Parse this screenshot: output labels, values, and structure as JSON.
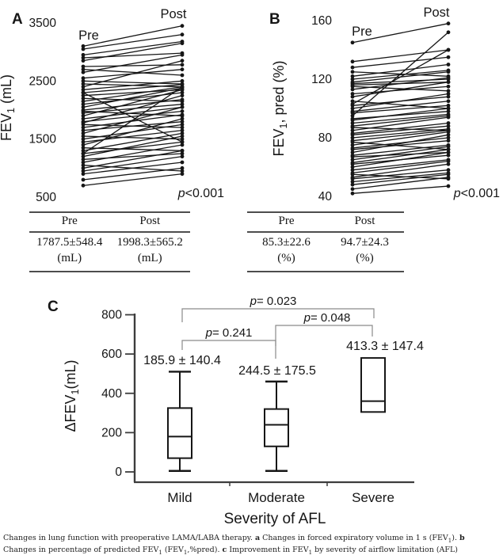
{
  "colors": {
    "ink": "#161616",
    "axis": "#3d3d3d",
    "bracket": "#8a8a8a",
    "table_rule": "#4d4d4d"
  },
  "tables": {
    "a": {
      "headers": [
        "Pre",
        "Post"
      ],
      "values": [
        "1787.5±548.4",
        "1998.3±565.2"
      ],
      "units": [
        "(mL)",
        "(mL)"
      ]
    },
    "b": {
      "headers": [
        "Pre",
        "Post"
      ],
      "values": [
        "85.3±22.6",
        "94.7±24.3"
      ],
      "units": [
        "(%)",
        "(%)"
      ]
    }
  },
  "figure": {
    "caption_segments": [
      {
        "t": "Changes in lung function with preoperative LAMA/LABA therapy. "
      },
      {
        "t": "a",
        "b": true
      },
      {
        "t": " Changes in forced expiratory volume in 1 s (FEV"
      },
      {
        "t": "1",
        "sub": true
      },
      {
        "t": "). "
      },
      {
        "t": "b",
        "b": true
      },
      {
        "t": " Changes in percentage of predicted FEV"
      },
      {
        "t": "1",
        "sub": true
      },
      {
        "t": " (FEV"
      },
      {
        "t": "1",
        "sub": true
      },
      {
        "t": ",%pred). "
      },
      {
        "t": "c",
        "b": true
      },
      {
        "t": " Improvement in FEV"
      },
      {
        "t": "1",
        "sub": true
      },
      {
        "t": " by severity of airflow limitation (AFL)"
      }
    ]
  },
  "chart_data": [
    {
      "id": "a",
      "type": "line",
      "subtype": "paired-lines",
      "panel_label": "A",
      "ylabel_segments": [
        {
          "t": "FEV"
        },
        {
          "t": "1",
          "sub": true
        },
        {
          "t": " (mL)"
        }
      ],
      "yticks": [
        3500,
        2500,
        1500,
        500
      ],
      "ylim": [
        500,
        3500
      ],
      "group_labels": [
        "Pre",
        "Post"
      ],
      "p_label": "p<0.001",
      "summary": {
        "pre": "1787.5±548.4 (mL)",
        "post": "1998.3±565.2 (mL)"
      },
      "pairs": [
        [
          3100,
          3450
        ],
        [
          3050,
          3300
        ],
        [
          2950,
          3180
        ],
        [
          2900,
          2980
        ],
        [
          2850,
          3150
        ],
        [
          2750,
          2780
        ],
        [
          2700,
          2600
        ],
        [
          2650,
          2950
        ],
        [
          2550,
          2700
        ],
        [
          2500,
          2450
        ],
        [
          2450,
          2400
        ],
        [
          2400,
          2850
        ],
        [
          2350,
          2500
        ],
        [
          2300,
          1450
        ],
        [
          2300,
          2440
        ],
        [
          2250,
          2350
        ],
        [
          2200,
          2150
        ],
        [
          2150,
          2400
        ],
        [
          2100,
          2300
        ],
        [
          2050,
          2380
        ],
        [
          2000,
          2180
        ],
        [
          1980,
          1900
        ],
        [
          1950,
          2100
        ],
        [
          1900,
          2350
        ],
        [
          1850,
          2050
        ],
        [
          1800,
          1980
        ],
        [
          1780,
          2250
        ],
        [
          1750,
          1700
        ],
        [
          1700,
          1920
        ],
        [
          1650,
          1800
        ],
        [
          1600,
          2050
        ],
        [
          1550,
          1500
        ],
        [
          1500,
          1750
        ],
        [
          1450,
          1650
        ],
        [
          1400,
          1850
        ],
        [
          1350,
          1300
        ],
        [
          1300,
          1600
        ],
        [
          1250,
          2400
        ],
        [
          1250,
          1450
        ],
        [
          1200,
          1550
        ],
        [
          1150,
          1250
        ],
        [
          1100,
          1400
        ],
        [
          1050,
          950
        ],
        [
          1000,
          1300
        ],
        [
          950,
          1200
        ],
        [
          900,
          1100
        ],
        [
          800,
          1000
        ],
        [
          700,
          900
        ]
      ]
    },
    {
      "id": "b",
      "type": "line",
      "subtype": "paired-lines",
      "panel_label": "B",
      "ylabel_segments": [
        {
          "t": "FEV"
        },
        {
          "t": "1",
          "sub": true
        },
        {
          "t": ", pred (%)"
        }
      ],
      "yticks": [
        160,
        120,
        80,
        40
      ],
      "ylim": [
        40,
        160
      ],
      "group_labels": [
        "Pre",
        "Post"
      ],
      "p_label": "p<0.001",
      "summary": {
        "pre": "85.3±22.6 (%)",
        "post": "94.7±24.3 (%)"
      },
      "pairs": [
        [
          145,
          158
        ],
        [
          132,
          140
        ],
        [
          128,
          135
        ],
        [
          125,
          122
        ],
        [
          122,
          130
        ],
        [
          120,
          126
        ],
        [
          118,
          125
        ],
        [
          117,
          120
        ],
        [
          116,
          118
        ],
        [
          115,
          112
        ],
        [
          113,
          121
        ],
        [
          110,
          115
        ],
        [
          108,
          118
        ],
        [
          105,
          100
        ],
        [
          103,
          140
        ],
        [
          102,
          108
        ],
        [
          100,
          110
        ],
        [
          98,
          105
        ],
        [
          97,
          102
        ],
        [
          95,
          152
        ],
        [
          93,
          98
        ],
        [
          92,
          100
        ],
        [
          90,
          96
        ],
        [
          88,
          95
        ],
        [
          87,
          85
        ],
        [
          85,
          94
        ],
        [
          83,
          90
        ],
        [
          82,
          88
        ],
        [
          80,
          86
        ],
        [
          78,
          85
        ],
        [
          77,
          72
        ],
        [
          75,
          84
        ],
        [
          73,
          80
        ],
        [
          72,
          78
        ],
        [
          70,
          82
        ],
        [
          68,
          75
        ],
        [
          67,
          70
        ],
        [
          65,
          74
        ],
        [
          63,
          72
        ],
        [
          62,
          68
        ],
        [
          60,
          70
        ],
        [
          58,
          65
        ],
        [
          56,
          64
        ],
        [
          55,
          52
        ],
        [
          53,
          62
        ],
        [
          52,
          58
        ],
        [
          50,
          56
        ],
        [
          48,
          55
        ],
        [
          45,
          53
        ],
        [
          42,
          47
        ]
      ]
    },
    {
      "id": "c",
      "type": "box",
      "panel_label": "C",
      "ylabel_segments": [
        {
          "t": "ΔFEV"
        },
        {
          "t": "1",
          "sub": true
        },
        {
          "t": "(mL)"
        }
      ],
      "xlabel": "Severity of AFL",
      "yticks": [
        800,
        600,
        400,
        200,
        0
      ],
      "ylim": [
        0,
        800
      ],
      "categories": [
        "Mild",
        "Moderate",
        "Severe"
      ],
      "boxes": [
        {
          "category": "Mild",
          "whisker_low": 5,
          "q1": 70,
          "median": 180,
          "q3": 325,
          "whisker_high": 510,
          "annotation": "185.9 ± 140.4"
        },
        {
          "category": "Moderate",
          "whisker_low": 5,
          "q1": 130,
          "median": 240,
          "q3": 320,
          "whisker_high": 460,
          "annotation": "244.5 ± 175.5"
        },
        {
          "category": "Severe",
          "q1": 305,
          "median": 360,
          "q3": 580,
          "annotation": "413.3 ± 147.4"
        }
      ],
      "comparisons": [
        {
          "groups": [
            "Mild",
            "Severe"
          ],
          "label": "p= 0.023"
        },
        {
          "groups": [
            "Moderate",
            "Severe"
          ],
          "label": "p= 0.048"
        },
        {
          "groups": [
            "Mild",
            "Moderate"
          ],
          "label": "p= 0.241"
        }
      ]
    }
  ]
}
